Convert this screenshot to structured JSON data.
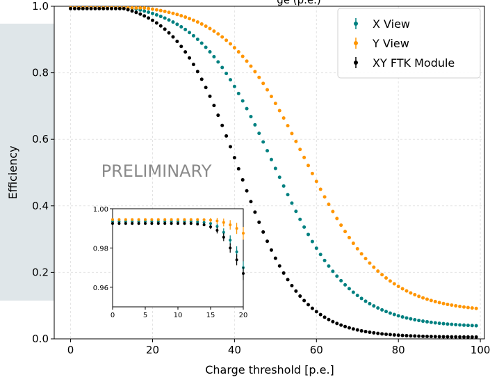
{
  "chart_data": [
    {
      "type": "scatter",
      "title_fragment": "ge (p.e.)",
      "xlabel": "Charge threshold [p.e.]",
      "ylabel": "Efficiency",
      "xlim": [
        -4,
        101
      ],
      "ylim": [
        0.0,
        1.0
      ],
      "xticks": [
        0,
        20,
        40,
        60,
        80,
        100
      ],
      "yticks": [
        0.0,
        0.2,
        0.4,
        0.6,
        0.8,
        1.0
      ],
      "ytick_labels": [
        "0.0",
        "0.2",
        "0.4",
        "0.6",
        "0.8",
        "1.0"
      ],
      "grid": true,
      "legend_position": "top-right",
      "annotation": "PRELIMINARY",
      "x_range": [
        0,
        99
      ],
      "series": [
        {
          "name": "X View",
          "color": "#008080",
          "model": {
            "top": 0.994,
            "bottom": 0.035,
            "mid": 49.5,
            "width": 9.2,
            "onset": 15
          }
        },
        {
          "name": "Y View",
          "color": "#ff9500",
          "model": {
            "top": 0.995,
            "bottom": 0.08,
            "mid": 57.0,
            "width": 9.6,
            "onset": 18
          }
        },
        {
          "name": "XY FTK Module",
          "color": "#000000",
          "model": {
            "top": 0.993,
            "bottom": 0.005,
            "mid": 41.0,
            "width": 7.6,
            "onset": 13
          }
        }
      ]
    },
    {
      "type": "scatter",
      "title": "",
      "xlim": [
        0,
        20
      ],
      "ylim": [
        0.95,
        1.0
      ],
      "xticks": [
        0,
        5,
        10,
        15,
        20
      ],
      "yticks": [
        0.96,
        0.98,
        1.0
      ],
      "ytick_labels": [
        "0.96",
        "0.98",
        "1.00"
      ],
      "series": [
        {
          "name": "X View",
          "color": "#008080",
          "points": [
            [
              0,
              0.9935
            ],
            [
              1,
              0.9935
            ],
            [
              2,
              0.9935
            ],
            [
              3,
              0.9935
            ],
            [
              4,
              0.9935
            ],
            [
              5,
              0.9935
            ],
            [
              6,
              0.9935
            ],
            [
              7,
              0.9935
            ],
            [
              8,
              0.9935
            ],
            [
              9,
              0.9935
            ],
            [
              10,
              0.9935
            ],
            [
              11,
              0.9935
            ],
            [
              12,
              0.9935
            ],
            [
              13,
              0.9933
            ],
            [
              14,
              0.993
            ],
            [
              15,
              0.9925
            ],
            [
              16,
              0.991
            ],
            [
              17,
              0.988
            ],
            [
              18,
              0.984
            ],
            [
              19,
              0.978
            ],
            [
              20,
              0.97
            ]
          ]
        },
        {
          "name": "Y View",
          "color": "#ff9500",
          "points": [
            [
              0,
              0.9945
            ],
            [
              1,
              0.9945
            ],
            [
              2,
              0.9945
            ],
            [
              3,
              0.9945
            ],
            [
              4,
              0.9945
            ],
            [
              5,
              0.9945
            ],
            [
              6,
              0.9945
            ],
            [
              7,
              0.9945
            ],
            [
              8,
              0.9945
            ],
            [
              9,
              0.9945
            ],
            [
              10,
              0.9945
            ],
            [
              11,
              0.9945
            ],
            [
              12,
              0.9945
            ],
            [
              13,
              0.9945
            ],
            [
              14,
              0.9944
            ],
            [
              15,
              0.9942
            ],
            [
              16,
              0.9938
            ],
            [
              17,
              0.993
            ],
            [
              18,
              0.9918
            ],
            [
              19,
              0.99
            ],
            [
              20,
              0.9875
            ]
          ]
        },
        {
          "name": "XY FTK Module",
          "color": "#000000",
          "points": [
            [
              0,
              0.9925
            ],
            [
              1,
              0.9925
            ],
            [
              2,
              0.9925
            ],
            [
              3,
              0.9925
            ],
            [
              4,
              0.9925
            ],
            [
              5,
              0.9925
            ],
            [
              6,
              0.9925
            ],
            [
              7,
              0.9925
            ],
            [
              8,
              0.9925
            ],
            [
              9,
              0.9925
            ],
            [
              10,
              0.9925
            ],
            [
              11,
              0.9925
            ],
            [
              12,
              0.9925
            ],
            [
              13,
              0.9922
            ],
            [
              14,
              0.9918
            ],
            [
              15,
              0.9908
            ],
            [
              16,
              0.989
            ],
            [
              17,
              0.9855
            ],
            [
              18,
              0.98
            ],
            [
              19,
              0.974
            ],
            [
              20,
              0.967
            ]
          ]
        }
      ]
    }
  ]
}
